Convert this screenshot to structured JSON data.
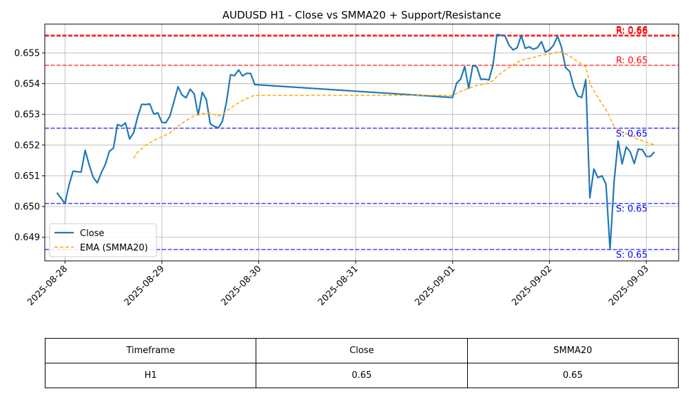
{
  "chart_data": {
    "type": "line",
    "title": "AUDUSD H1 - Close vs SMMA20 + Support/Resistance",
    "xlabel": "",
    "ylabel": "",
    "xlim": [
      "2025-08-27 19:00",
      "2025-09-03 08:00"
    ],
    "ylim": [
      0.64823,
      0.65594
    ],
    "x_ticks": [
      "2025-08-28",
      "2025-08-29",
      "2025-08-30",
      "2025-08-31",
      "2025-09-01",
      "2025-09-02",
      "2025-09-03"
    ],
    "y_ticks": [
      "0.649",
      "0.650",
      "0.651",
      "0.652",
      "0.653",
      "0.654",
      "0.655"
    ],
    "grid": true,
    "legend_position": "lower-left",
    "series": [
      {
        "name": "Close",
        "color": "#1f77b4",
        "style": "solid",
        "points": [
          [
            "2025-08-27 22:00",
            0.65045
          ],
          [
            "2025-08-28 00:00",
            0.6501
          ],
          [
            "2025-08-28 01:00",
            0.6507
          ],
          [
            "2025-08-28 02:00",
            0.65115
          ],
          [
            "2025-08-28 04:00",
            0.65112
          ],
          [
            "2025-08-28 05:00",
            0.65183
          ],
          [
            "2025-08-28 06:00",
            0.65135
          ],
          [
            "2025-08-28 07:00",
            0.65095
          ],
          [
            "2025-08-28 08:00",
            0.65077
          ],
          [
            "2025-08-28 09:00",
            0.6511
          ],
          [
            "2025-08-28 10:00",
            0.65137
          ],
          [
            "2025-08-28 11:00",
            0.6518
          ],
          [
            "2025-08-28 12:00",
            0.6519
          ],
          [
            "2025-08-28 13:00",
            0.65267
          ],
          [
            "2025-08-28 14:00",
            0.65262
          ],
          [
            "2025-08-28 15:00",
            0.65272
          ],
          [
            "2025-08-28 16:00",
            0.6522
          ],
          [
            "2025-08-28 17:00",
            0.6524
          ],
          [
            "2025-08-28 18:00",
            0.65292
          ],
          [
            "2025-08-28 19:00",
            0.65333
          ],
          [
            "2025-08-28 20:00",
            0.65332
          ],
          [
            "2025-08-28 21:00",
            0.65334
          ],
          [
            "2025-08-28 22:00",
            0.65301
          ],
          [
            "2025-08-28 23:00",
            0.65305
          ],
          [
            "2025-08-29 00:00",
            0.65274
          ],
          [
            "2025-08-29 01:00",
            0.65273
          ],
          [
            "2025-08-29 02:00",
            0.65295
          ],
          [
            "2025-08-29 03:00",
            0.65342
          ],
          [
            "2025-08-29 04:00",
            0.6539
          ],
          [
            "2025-08-29 05:00",
            0.65363
          ],
          [
            "2025-08-29 06:00",
            0.65354
          ],
          [
            "2025-08-29 07:00",
            0.65382
          ],
          [
            "2025-08-29 08:00",
            0.65367
          ],
          [
            "2025-08-29 09:00",
            0.65298
          ],
          [
            "2025-08-29 10:00",
            0.65372
          ],
          [
            "2025-08-29 11:00",
            0.65349
          ],
          [
            "2025-08-29 12:00",
            0.65269
          ],
          [
            "2025-08-29 13:00",
            0.65261
          ],
          [
            "2025-08-29 14:00",
            0.65256
          ],
          [
            "2025-08-29 15:00",
            0.65278
          ],
          [
            "2025-08-29 16:00",
            0.6534
          ],
          [
            "2025-08-29 17:00",
            0.65429
          ],
          [
            "2025-08-29 18:00",
            0.65426
          ],
          [
            "2025-08-29 19:00",
            0.65445
          ],
          [
            "2025-08-29 20:00",
            0.65425
          ],
          [
            "2025-08-29 21:00",
            0.65434
          ],
          [
            "2025-08-29 22:00",
            0.65433
          ],
          [
            "2025-08-29 23:00",
            0.65397
          ],
          [
            "2025-09-01 00:00",
            0.65355
          ],
          [
            "2025-09-01 01:00",
            0.65402
          ],
          [
            "2025-09-01 02:00",
            0.65415
          ],
          [
            "2025-09-01 03:00",
            0.65456
          ],
          [
            "2025-09-01 04:00",
            0.65385
          ],
          [
            "2025-09-01 05:00",
            0.65459
          ],
          [
            "2025-09-01 06:00",
            0.65455
          ],
          [
            "2025-09-01 07:00",
            0.65414
          ],
          [
            "2025-09-01 08:00",
            0.65415
          ],
          [
            "2025-09-01 09:00",
            0.65412
          ],
          [
            "2025-09-01 10:00",
            0.6546
          ],
          [
            "2025-09-01 11:00",
            0.6556
          ],
          [
            "2025-09-01 12:00",
            0.65558
          ],
          [
            "2025-09-01 13:00",
            0.65555
          ],
          [
            "2025-09-01 14:00",
            0.65525
          ],
          [
            "2025-09-01 15:00",
            0.6551
          ],
          [
            "2025-09-01 16:00",
            0.65517
          ],
          [
            "2025-09-01 17:00",
            0.65557
          ],
          [
            "2025-09-01 18:00",
            0.65515
          ],
          [
            "2025-09-01 19:00",
            0.6552
          ],
          [
            "2025-09-01 20:00",
            0.65512
          ],
          [
            "2025-09-01 21:00",
            0.65517
          ],
          [
            "2025-09-01 22:00",
            0.65537
          ],
          [
            "2025-09-01 23:00",
            0.65503
          ],
          [
            "2025-09-02 00:00",
            0.6551
          ],
          [
            "2025-09-02 01:00",
            0.65525
          ],
          [
            "2025-09-02 02:00",
            0.65555
          ],
          [
            "2025-09-02 03:00",
            0.65518
          ],
          [
            "2025-09-02 04:00",
            0.65452
          ],
          [
            "2025-09-02 05:00",
            0.6544
          ],
          [
            "2025-09-02 06:00",
            0.6539
          ],
          [
            "2025-09-02 07:00",
            0.6536
          ],
          [
            "2025-09-02 08:00",
            0.65355
          ],
          [
            "2025-09-02 09:00",
            0.65413
          ],
          [
            "2025-09-02 10:00",
            0.65028
          ],
          [
            "2025-09-02 11:00",
            0.65122
          ],
          [
            "2025-09-02 12:00",
            0.65094
          ],
          [
            "2025-09-02 13:00",
            0.651
          ],
          [
            "2025-09-02 14:00",
            0.65073
          ],
          [
            "2025-09-02 15:00",
            0.6486
          ],
          [
            "2025-09-02 16:00",
            0.6508
          ],
          [
            "2025-09-02 17:00",
            0.65213
          ],
          [
            "2025-09-02 18:00",
            0.65139
          ],
          [
            "2025-09-02 19:00",
            0.65194
          ],
          [
            "2025-09-02 20:00",
            0.65178
          ],
          [
            "2025-09-02 21:00",
            0.6514
          ],
          [
            "2025-09-02 22:00",
            0.65187
          ],
          [
            "2025-09-02 23:00",
            0.65185
          ],
          [
            "2025-09-03 00:00",
            0.65163
          ],
          [
            "2025-09-03 01:00",
            0.65163
          ],
          [
            "2025-09-03 02:00",
            0.65178
          ]
        ]
      },
      {
        "name": "EMA (SMMA20)",
        "color": "#ffa500",
        "style": "dashed",
        "points": [
          [
            "2025-08-28 17:00",
            0.65157
          ],
          [
            "2025-08-28 18:00",
            0.65177
          ],
          [
            "2025-08-28 20:00",
            0.652
          ],
          [
            "2025-08-28 22:00",
            0.65215
          ],
          [
            "2025-08-29 00:00",
            0.65227
          ],
          [
            "2025-08-29 02:00",
            0.6524
          ],
          [
            "2025-08-29 04:00",
            0.65262
          ],
          [
            "2025-08-29 06:00",
            0.6528
          ],
          [
            "2025-08-29 08:00",
            0.65295
          ],
          [
            "2025-08-29 10:00",
            0.65303
          ],
          [
            "2025-08-29 12:00",
            0.65303
          ],
          [
            "2025-08-29 14:00",
            0.65295
          ],
          [
            "2025-08-29 15:00",
            0.653
          ],
          [
            "2025-08-29 16:00",
            0.6531
          ],
          [
            "2025-08-29 18:00",
            0.6533
          ],
          [
            "2025-08-29 20:00",
            0.65345
          ],
          [
            "2025-08-29 22:00",
            0.65358
          ],
          [
            "2025-08-29 23:00",
            0.65362
          ],
          [
            "2025-09-01 00:00",
            0.65362
          ],
          [
            "2025-09-01 02:00",
            0.65375
          ],
          [
            "2025-09-01 04:00",
            0.65385
          ],
          [
            "2025-09-01 06:00",
            0.65395
          ],
          [
            "2025-09-01 08:00",
            0.65397
          ],
          [
            "2025-09-01 10:00",
            0.6541
          ],
          [
            "2025-09-01 12:00",
            0.65435
          ],
          [
            "2025-09-01 14:00",
            0.65452
          ],
          [
            "2025-09-01 16:00",
            0.6547
          ],
          [
            "2025-09-01 18:00",
            0.6548
          ],
          [
            "2025-09-01 20:00",
            0.65485
          ],
          [
            "2025-09-01 22:00",
            0.65493
          ],
          [
            "2025-09-02 00:00",
            0.65496
          ],
          [
            "2025-09-02 02:00",
            0.65503
          ],
          [
            "2025-09-02 03:00",
            0.65503
          ],
          [
            "2025-09-02 05:00",
            0.6549
          ],
          [
            "2025-09-02 07:00",
            0.65472
          ],
          [
            "2025-09-02 09:00",
            0.65455
          ],
          [
            "2025-09-02 10:00",
            0.654
          ],
          [
            "2025-09-02 12:00",
            0.65355
          ],
          [
            "2025-09-02 14:00",
            0.65315
          ],
          [
            "2025-09-02 15:00",
            0.6529
          ],
          [
            "2025-09-02 16:00",
            0.6526
          ],
          [
            "2025-09-02 18:00",
            0.65242
          ],
          [
            "2025-09-02 20:00",
            0.65232
          ],
          [
            "2025-09-02 22:00",
            0.65218
          ],
          [
            "2025-09-03 00:00",
            0.6521
          ],
          [
            "2025-09-03 02:00",
            0.652
          ]
        ]
      }
    ],
    "levels": [
      {
        "kind": "resistance",
        "value": 0.65558,
        "label": "R: 0.66",
        "color": "#ff0000"
      },
      {
        "kind": "resistance",
        "value": 0.65556,
        "label": "R: 0.66",
        "color": "#ff0000"
      },
      {
        "kind": "resistance",
        "value": 0.65555,
        "label": "R: 0.66",
        "color": "#ff0000"
      },
      {
        "kind": "resistance",
        "value": 0.6546,
        "label": "R: 0.65",
        "color": "#ff0000"
      },
      {
        "kind": "support",
        "value": 0.65255,
        "label": "S: 0.65",
        "color": "#0000ff"
      },
      {
        "kind": "support",
        "value": 0.6501,
        "label": "S: 0.65",
        "color": "#0000ff"
      },
      {
        "kind": "support",
        "value": 0.6486,
        "label": "S: 0.65",
        "color": "#0000ff"
      }
    ]
  },
  "table": {
    "headers": [
      "Timeframe",
      "Close",
      "SMMA20"
    ],
    "rows": [
      [
        "H1",
        "0.65",
        "0.65"
      ]
    ]
  }
}
